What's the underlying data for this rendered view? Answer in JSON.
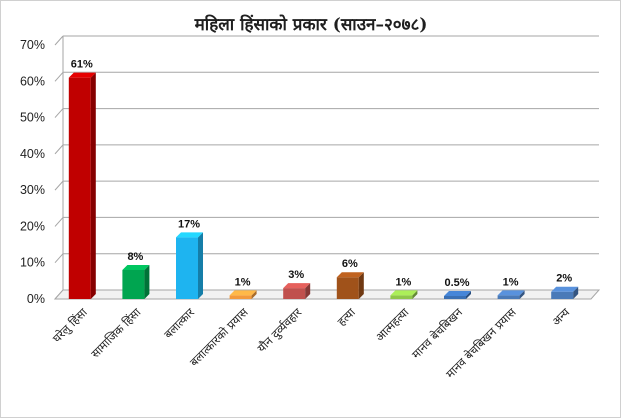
{
  "chart_data": {
    "type": "bar",
    "title": "महिला हिंसाको प्रकार (साउन–२०७८)",
    "categories": [
      "घरेलु हिंसा",
      "सामाजिक हिंसा",
      "बलात्कार",
      "बलात्कारको प्रयास",
      "यौन दुर्व्यवहार",
      "हत्या",
      "आत्महत्या",
      "मानव बेचबिखन",
      "मानव बेचबिखन प्रयास",
      "अन्य"
    ],
    "values": [
      61,
      8,
      17,
      1,
      3,
      6,
      1,
      0.5,
      1,
      2
    ],
    "data_labels": [
      "61%",
      "8%",
      "17%",
      "1%",
      "3%",
      "6%",
      "1%",
      "0.5%",
      "1%",
      "2%"
    ],
    "colors": [
      "#c00000",
      "#00a550",
      "#1eb4f0",
      "#f39a3c",
      "#c0504d",
      "#a0521a",
      "#8fc74a",
      "#3a70b4",
      "#4a7ab8",
      "#4a7ab8"
    ],
    "ylim": [
      0,
      70
    ],
    "yticks": [
      "0%",
      "10%",
      "20%",
      "30%",
      "40%",
      "50%",
      "60%",
      "70%"
    ],
    "grid": true,
    "legend": "none"
  }
}
